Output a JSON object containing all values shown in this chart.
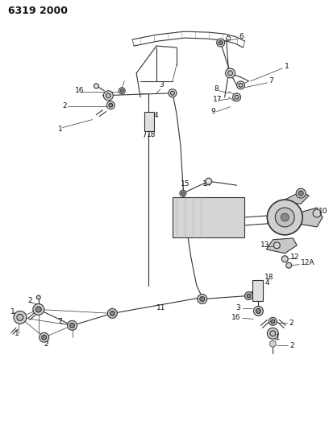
{
  "title": "6319 2000",
  "bg_color": "#ffffff",
  "line_color": "#333333",
  "title_fontsize": 9,
  "label_fontsize": 6.5,
  "fig_width": 4.08,
  "fig_height": 5.33,
  "dpi": 100
}
